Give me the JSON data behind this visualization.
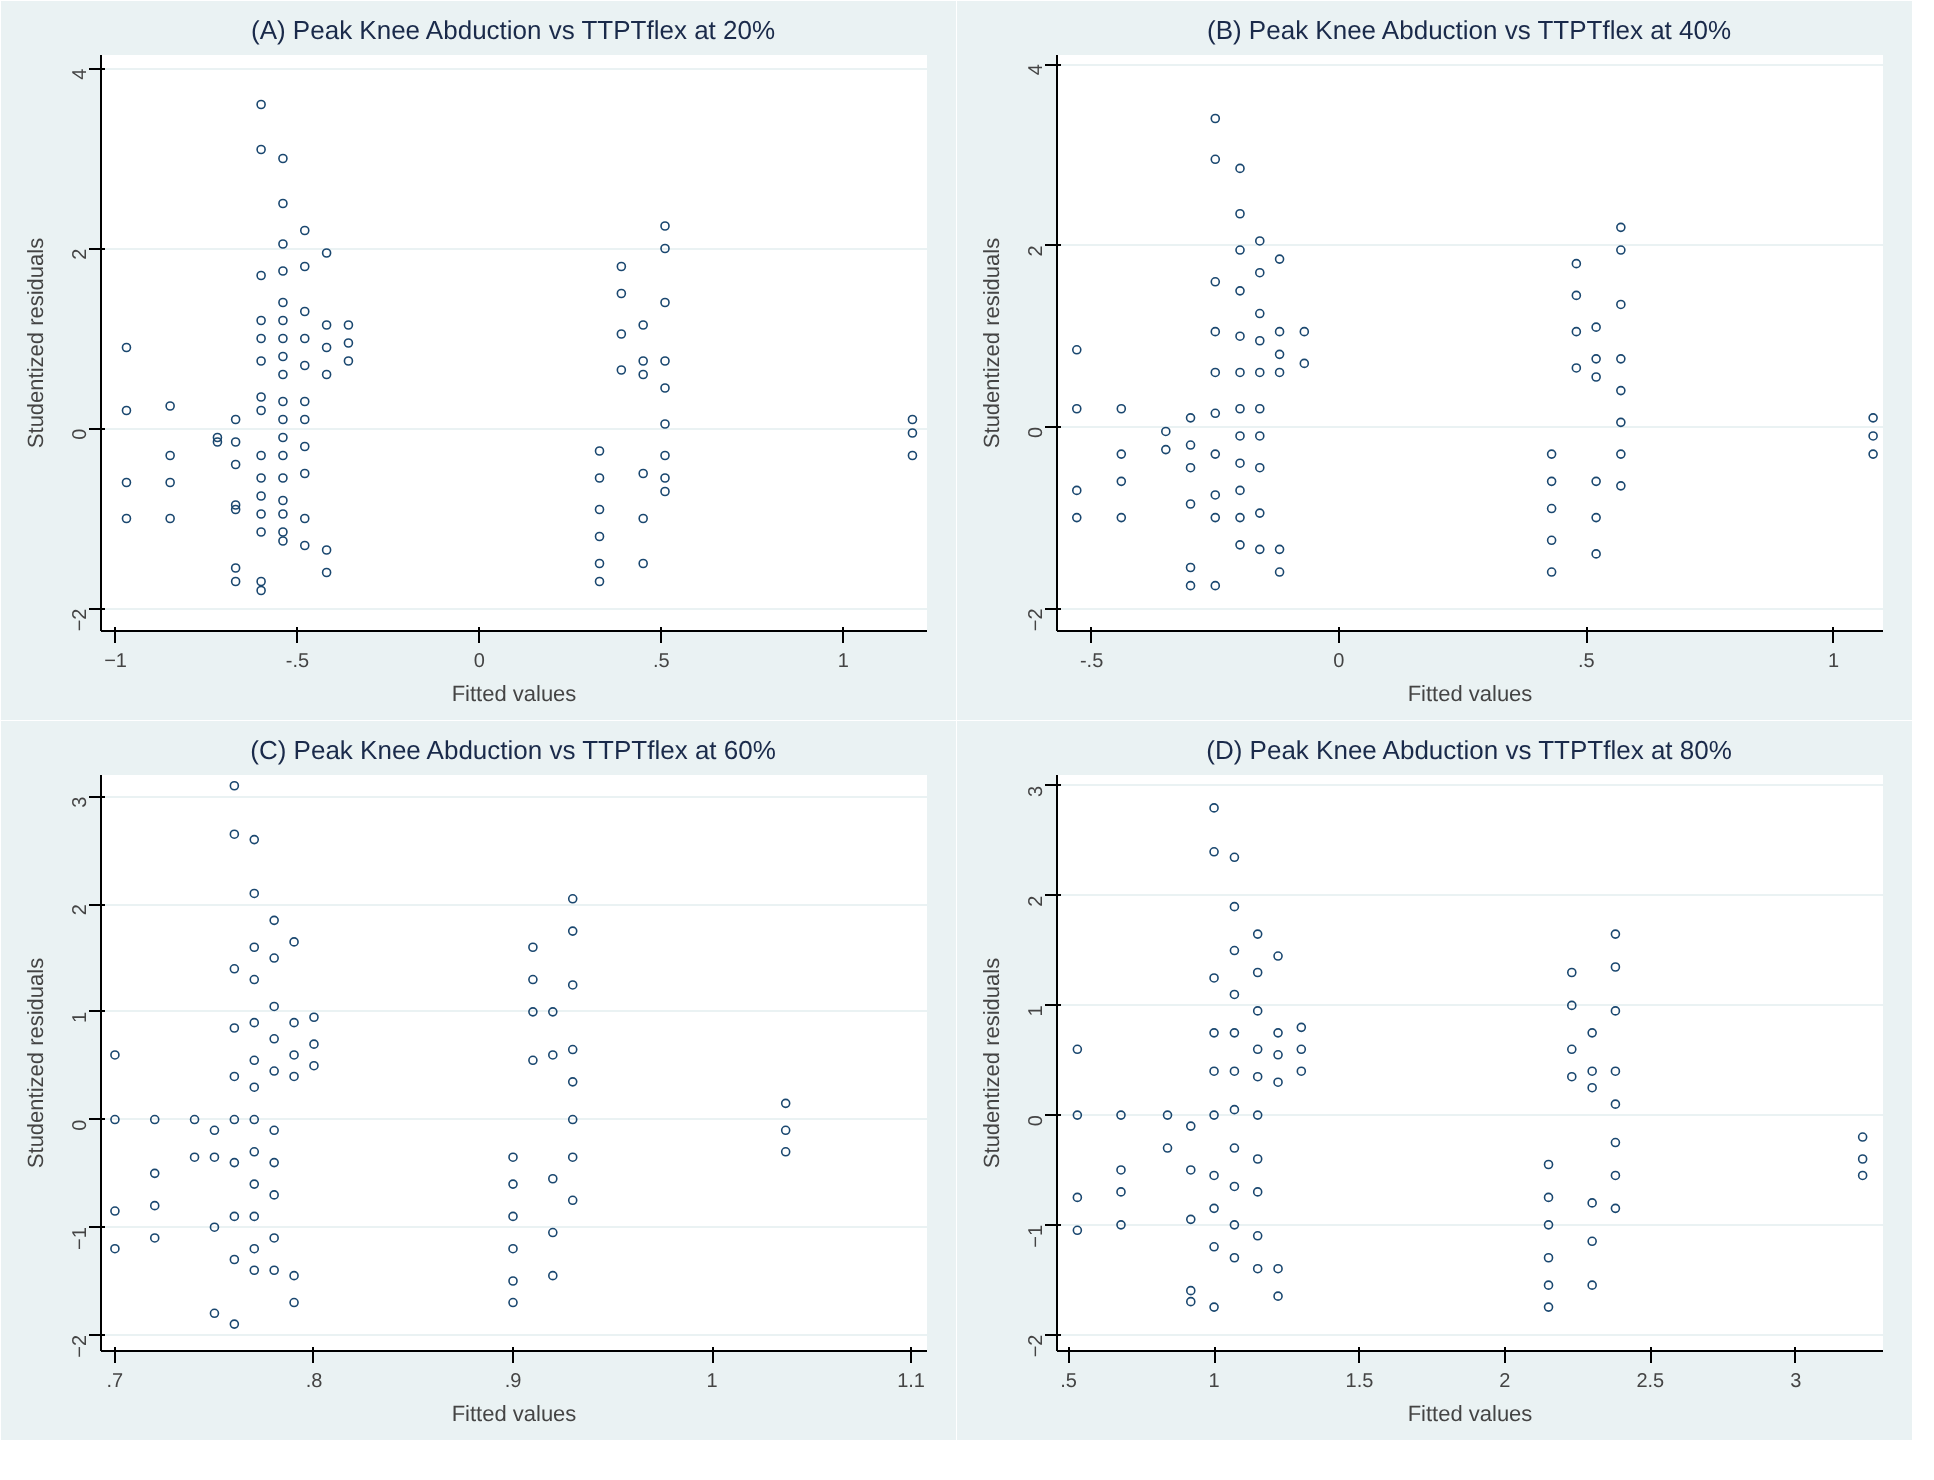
{
  "chart_data": [
    {
      "type": "scatter",
      "title": "(A) Peak Knee Abduction vs TTPTflex at 20%",
      "xlabel": "Fitted values",
      "ylabel": "Studentized residuals",
      "marker": "circle",
      "grid": "y",
      "xlim": [
        -1.04,
        1.23
      ],
      "ylim": [
        -2.25,
        4.15
      ],
      "xticks": [
        -1,
        {
          "value": -0.5,
          "label": "-.5"
        },
        0,
        {
          "value": 0.5,
          "label": ".5"
        },
        1
      ],
      "yticks": [
        -2,
        0,
        2,
        4
      ],
      "series": [
        {
          "color": "#1a476f",
          "x": [
            -0.97,
            -0.97,
            -0.97,
            -0.97,
            -0.85,
            -0.85,
            -0.85,
            -0.85,
            -0.72,
            -0.72,
            -0.67,
            -0.67,
            -0.67,
            -0.67,
            -0.67,
            -0.67,
            -0.67,
            -0.6,
            -0.6,
            -0.6,
            -0.6,
            -0.6,
            -0.6,
            -0.6,
            -0.6,
            -0.6,
            -0.6,
            -0.6,
            -0.6,
            -0.6,
            -0.6,
            -0.6,
            -0.54,
            -0.54,
            -0.54,
            -0.54,
            -0.54,
            -0.54,
            -0.54,
            -0.54,
            -0.54,
            -0.54,
            -0.54,
            -0.54,
            -0.54,
            -0.54,
            -0.54,
            -0.54,
            -0.54,
            -0.54,
            -0.48,
            -0.48,
            -0.48,
            -0.48,
            -0.48,
            -0.48,
            -0.48,
            -0.48,
            -0.48,
            -0.48,
            -0.48,
            -0.42,
            -0.42,
            -0.42,
            -0.42,
            -0.42,
            -0.42,
            -0.36,
            -0.36,
            -0.36,
            0.33,
            0.33,
            0.33,
            0.33,
            0.33,
            0.33,
            0.39,
            0.39,
            0.39,
            0.39,
            0.45,
            0.45,
            0.45,
            0.45,
            0.45,
            0.45,
            0.51,
            0.51,
            0.51,
            0.51,
            0.51,
            0.51,
            0.51,
            0.51,
            0.51,
            1.19,
            1.19,
            1.19
          ],
          "values": [
            0.9,
            0.2,
            -0.6,
            -1.0,
            0.25,
            -0.3,
            -0.6,
            -1.0,
            -0.1,
            -0.15,
            0.1,
            -0.15,
            -0.4,
            -0.85,
            -0.9,
            -1.55,
            -1.7,
            3.6,
            3.1,
            1.7,
            1.2,
            1.0,
            0.75,
            0.35,
            0.2,
            -0.3,
            -0.55,
            -0.75,
            -0.95,
            -1.15,
            -1.7,
            -1.8,
            3.0,
            2.5,
            2.05,
            1.75,
            1.4,
            1.2,
            1.0,
            0.8,
            0.6,
            0.3,
            0.1,
            -0.1,
            -0.3,
            -0.55,
            -0.8,
            -0.95,
            -1.15,
            -1.25,
            2.2,
            1.8,
            1.3,
            1.0,
            0.7,
            0.3,
            0.1,
            -0.2,
            -0.5,
            -1.0,
            -1.3,
            1.95,
            1.15,
            0.9,
            0.6,
            -1.35,
            -1.6,
            1.15,
            0.95,
            0.75,
            -0.25,
            -0.55,
            -0.9,
            -1.2,
            -1.5,
            -1.7,
            1.8,
            1.5,
            1.05,
            0.65,
            1.15,
            0.75,
            0.6,
            -0.5,
            -1.0,
            -1.5,
            2.25,
            2.0,
            1.4,
            0.75,
            0.45,
            0.05,
            -0.3,
            -0.55,
            -0.7,
            0.1,
            -0.05,
            -0.3
          ]
        }
      ]
    },
    {
      "type": "scatter",
      "title": "(B) Peak Knee Abduction vs TTPTflex at 40%",
      "xlabel": "Fitted values",
      "ylabel": "Studentized residuals",
      "marker": "circle",
      "grid": "y",
      "xlim": [
        -0.57,
        1.1
      ],
      "ylim": [
        -2.25,
        4.1
      ],
      "xticks": [
        {
          "value": -0.5,
          "label": "-.5"
        },
        0,
        {
          "value": 0.5,
          "label": ".5"
        },
        1
      ],
      "yticks": [
        -2,
        0,
        2,
        4
      ],
      "series": [
        {
          "color": "#1a476f",
          "x": [
            -0.53,
            -0.53,
            -0.53,
            -0.53,
            -0.44,
            -0.44,
            -0.44,
            -0.44,
            -0.35,
            -0.35,
            -0.3,
            -0.3,
            -0.3,
            -0.3,
            -0.3,
            -0.3,
            -0.25,
            -0.25,
            -0.25,
            -0.25,
            -0.25,
            -0.25,
            -0.25,
            -0.25,
            -0.25,
            -0.25,
            -0.2,
            -0.2,
            -0.2,
            -0.2,
            -0.2,
            -0.2,
            -0.2,
            -0.2,
            -0.2,
            -0.2,
            -0.2,
            -0.2,
            -0.16,
            -0.16,
            -0.16,
            -0.16,
            -0.16,
            -0.16,
            -0.16,
            -0.16,
            -0.16,
            -0.16,
            -0.12,
            -0.12,
            -0.12,
            -0.12,
            -0.12,
            -0.12,
            -0.07,
            -0.07,
            0.43,
            0.43,
            0.43,
            0.43,
            0.43,
            0.48,
            0.48,
            0.48,
            0.48,
            0.52,
            0.52,
            0.52,
            0.52,
            0.52,
            0.52,
            0.57,
            0.57,
            0.57,
            0.57,
            0.57,
            0.57,
            0.57,
            0.57,
            1.08,
            1.08,
            1.08
          ],
          "values": [
            0.85,
            0.2,
            -0.7,
            -1.0,
            0.2,
            -0.3,
            -0.6,
            -1.0,
            -0.05,
            -0.25,
            0.1,
            -0.2,
            -0.45,
            -0.85,
            -1.55,
            -1.75,
            3.4,
            2.95,
            1.6,
            1.05,
            0.6,
            0.15,
            -0.3,
            -0.75,
            -1.0,
            -1.75,
            2.85,
            2.35,
            1.95,
            1.5,
            1.0,
            0.6,
            0.2,
            -0.1,
            -0.4,
            -0.7,
            -1.0,
            -1.3,
            2.05,
            1.7,
            1.25,
            0.95,
            0.6,
            0.2,
            -0.1,
            -0.45,
            -0.95,
            -1.35,
            1.85,
            1.05,
            0.8,
            0.6,
            -1.35,
            -1.6,
            1.05,
            0.7,
            -0.3,
            -0.6,
            -0.9,
            -1.25,
            -1.6,
            1.8,
            1.45,
            1.05,
            0.65,
            1.1,
            0.75,
            0.55,
            -0.6,
            -1.0,
            -1.4,
            2.2,
            1.95,
            1.35,
            0.75,
            0.4,
            0.05,
            -0.3,
            -0.65,
            0.1,
            -0.1,
            -0.3
          ]
        }
      ]
    },
    {
      "type": "scatter",
      "title": "(C) Peak Knee Abduction vs TTPTflex at 60%",
      "xlabel": "Fitted values",
      "ylabel": "Studentized residuals",
      "marker": "circle",
      "grid": "y",
      "xlim": [
        0.693,
        1.108
      ],
      "ylim": [
        -2.15,
        3.2
      ],
      "xticks": [
        {
          "value": 0.7,
          "label": ".7"
        },
        {
          "value": 0.8,
          "label": ".8"
        },
        {
          "value": 0.9,
          "label": ".9"
        },
        1,
        1.1
      ],
      "yticks": [
        -2,
        -1,
        0,
        1,
        2,
        3
      ],
      "series": [
        {
          "color": "#1a476f",
          "x": [
            0.7,
            0.7,
            0.7,
            0.7,
            0.72,
            0.72,
            0.72,
            0.72,
            0.74,
            0.74,
            0.75,
            0.75,
            0.75,
            0.75,
            0.76,
            0.76,
            0.76,
            0.76,
            0.76,
            0.76,
            0.76,
            0.76,
            0.76,
            0.76,
            0.77,
            0.77,
            0.77,
            0.77,
            0.77,
            0.77,
            0.77,
            0.77,
            0.77,
            0.77,
            0.77,
            0.77,
            0.77,
            0.78,
            0.78,
            0.78,
            0.78,
            0.78,
            0.78,
            0.78,
            0.78,
            0.78,
            0.78,
            0.79,
            0.79,
            0.79,
            0.79,
            0.79,
            0.79,
            0.8,
            0.8,
            0.8,
            0.9,
            0.9,
            0.9,
            0.9,
            0.9,
            0.9,
            0.91,
            0.91,
            0.91,
            0.91,
            0.92,
            0.92,
            0.92,
            0.92,
            0.92,
            0.93,
            0.93,
            0.93,
            0.93,
            0.93,
            0.93,
            0.93,
            0.93,
            1.037,
            1.037,
            1.037
          ],
          "values": [
            0.6,
            0,
            -0.85,
            -1.2,
            0,
            -0.5,
            -0.8,
            -1.1,
            0,
            -0.35,
            -0.1,
            -0.35,
            -1.0,
            -1.8,
            3.1,
            2.65,
            1.4,
            0.85,
            0.4,
            0,
            -0.4,
            -0.9,
            -1.3,
            -1.9,
            2.6,
            2.1,
            1.6,
            1.3,
            0.9,
            0.55,
            0.3,
            0,
            -0.3,
            -0.6,
            -0.9,
            -1.2,
            -1.4,
            1.85,
            1.5,
            1.05,
            0.75,
            0.45,
            -0.1,
            -0.4,
            -0.7,
            -1.1,
            -1.4,
            1.65,
            0.9,
            0.6,
            0.4,
            -1.45,
            -1.7,
            0.95,
            0.7,
            0.5,
            -0.35,
            -0.6,
            -0.9,
            -1.2,
            -1.5,
            -1.7,
            1.6,
            1.3,
            1.0,
            0.55,
            1.0,
            0.6,
            -0.55,
            -1.05,
            -1.45,
            2.05,
            1.75,
            1.25,
            0.65,
            0.35,
            0,
            -0.35,
            -0.75,
            0.15,
            -0.1,
            -0.3
          ]
        }
      ]
    },
    {
      "type": "scatter",
      "title": "(D) Peak Knee Abduction vs TTPTflex at 80%",
      "xlabel": "Fitted values",
      "ylabel": "Studentized residuals",
      "marker": "circle",
      "grid": "y",
      "xlim": [
        0.46,
        3.3
      ],
      "ylim": [
        -2.15,
        3.1
      ],
      "xticks": [
        {
          "value": 0.5,
          "label": ".5"
        },
        1,
        1.5,
        2,
        2.5,
        3
      ],
      "yticks": [
        -2,
        -1,
        0,
        1,
        2,
        3
      ],
      "series": [
        {
          "color": "#1a476f",
          "x": [
            0.53,
            0.53,
            0.53,
            0.53,
            0.68,
            0.68,
            0.68,
            0.68,
            0.84,
            0.84,
            0.92,
            0.92,
            0.92,
            0.92,
            0.92,
            1.0,
            1.0,
            1.0,
            1.0,
            1.0,
            1.0,
            1.0,
            1.0,
            1.0,
            1.0,
            1.07,
            1.07,
            1.07,
            1.07,
            1.07,
            1.07,
            1.07,
            1.07,
            1.07,
            1.07,
            1.07,
            1.15,
            1.15,
            1.15,
            1.15,
            1.15,
            1.15,
            1.15,
            1.15,
            1.15,
            1.15,
            1.22,
            1.22,
            1.22,
            1.22,
            1.22,
            1.22,
            1.3,
            1.3,
            1.3,
            2.15,
            2.15,
            2.15,
            2.15,
            2.15,
            2.15,
            2.23,
            2.23,
            2.23,
            2.23,
            2.3,
            2.3,
            2.3,
            2.3,
            2.3,
            2.3,
            2.38,
            2.38,
            2.38,
            2.38,
            2.38,
            2.38,
            2.38,
            2.38,
            3.23,
            3.23,
            3.23
          ],
          "values": [
            0.6,
            0,
            -0.75,
            -1.05,
            0,
            -0.5,
            -0.7,
            -1.0,
            0,
            -0.3,
            -0.1,
            -0.5,
            -0.95,
            -1.6,
            -1.7,
            2.8,
            2.4,
            1.25,
            0.75,
            0.4,
            0,
            -0.55,
            -0.85,
            -1.2,
            -1.75,
            2.35,
            1.9,
            1.5,
            1.1,
            0.75,
            0.4,
            0.05,
            -0.3,
            -0.65,
            -1.0,
            -1.3,
            1.65,
            1.3,
            0.95,
            0.6,
            0.35,
            0,
            -0.4,
            -0.7,
            -1.1,
            -1.4,
            1.45,
            0.75,
            0.55,
            0.3,
            -1.4,
            -1.65,
            0.8,
            0.6,
            0.4,
            -0.45,
            -0.75,
            -1.0,
            -1.3,
            -1.55,
            -1.75,
            1.3,
            1.0,
            0.6,
            0.35,
            0.75,
            0.4,
            0.25,
            -0.8,
            -1.15,
            -1.55,
            1.65,
            1.35,
            0.95,
            0.4,
            0.1,
            -0.25,
            -0.55,
            -0.85,
            -0.2,
            -0.4,
            -0.55
          ]
        }
      ]
    }
  ]
}
